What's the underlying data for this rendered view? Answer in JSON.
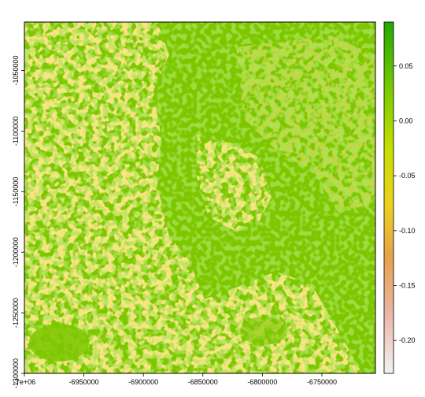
{
  "chart_data": {
    "type": "heatmap",
    "title": "",
    "xlabel": "",
    "ylabel": "",
    "xlim": [
      -7000000,
      -6705000
    ],
    "ylim": [
      -1300000,
      -1010000
    ],
    "x_ticks": [
      {
        "value": -7000000,
        "label": "-7e+06"
      },
      {
        "value": -6950000,
        "label": "-6950000"
      },
      {
        "value": -6900000,
        "label": "-6900000"
      },
      {
        "value": -6850000,
        "label": "-6850000"
      },
      {
        "value": -6800000,
        "label": "-6800000"
      },
      {
        "value": -6750000,
        "label": "-6750000"
      }
    ],
    "y_ticks": [
      {
        "value": -1050000,
        "label": "-1050000"
      },
      {
        "value": -1100000,
        "label": "-1100000"
      },
      {
        "value": -1150000,
        "label": "-1150000"
      },
      {
        "value": -1200000,
        "label": "-1200000"
      },
      {
        "value": -1250000,
        "label": "-1250000"
      },
      {
        "value": -1300000,
        "label": "-1300000"
      }
    ],
    "colorbar": {
      "range": [
        -0.23,
        0.09
      ],
      "ticks": [
        {
          "value": 0.05,
          "label": "0.05"
        },
        {
          "value": 0.0,
          "label": "0.00"
        },
        {
          "value": -0.05,
          "label": "-0.05"
        },
        {
          "value": -0.1,
          "label": "-0.10"
        },
        {
          "value": -0.15,
          "label": "-0.15"
        },
        {
          "value": -0.2,
          "label": "-0.20"
        }
      ],
      "colors": [
        "#f2f2f2",
        "#ebb6a5",
        "#e6a14d",
        "#ebd21f",
        "#c6de00",
        "#7dcc00",
        "#22a700"
      ]
    },
    "background_value": 0.0,
    "grid": false,
    "legend": "right"
  }
}
